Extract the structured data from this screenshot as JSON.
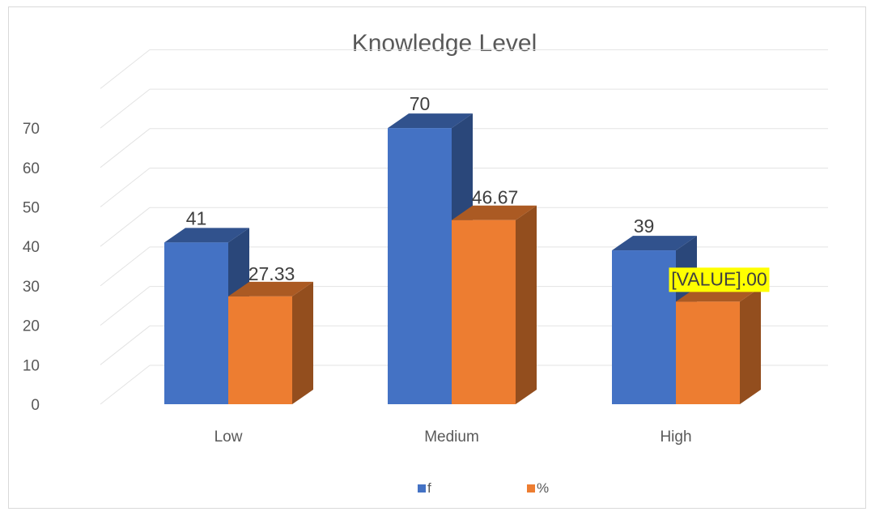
{
  "chart_data": {
    "type": "bar",
    "title": "Knowledge Level",
    "categories": [
      "Low",
      "Medium",
      "High"
    ],
    "series": [
      {
        "name": "f",
        "values": [
          41,
          70,
          39
        ],
        "labels": [
          "41",
          "70",
          "39"
        ],
        "color": "#4472c4"
      },
      {
        "name": "%",
        "values": [
          27.33,
          46.67,
          26.0
        ],
        "labels": [
          "27.33",
          "46.67",
          "[VALUE].00"
        ],
        "color": "#ed7d31"
      }
    ],
    "ylim": [
      0,
      70
    ],
    "yticks": [
      "0",
      "10",
      "20",
      "30",
      "40",
      "50",
      "60",
      "70"
    ],
    "grid": true,
    "three_d": true,
    "legend_position": "bottom",
    "highlight_label_color": "#ffff00"
  }
}
